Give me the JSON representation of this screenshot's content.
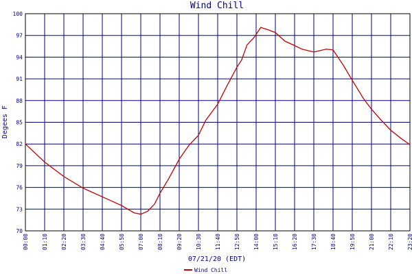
{
  "chart_data": {
    "type": "line",
    "title": "Wind Chill",
    "y_label": "Degees F",
    "x_label": "07/21/20 (EDT)",
    "x": [
      "00:00",
      "01:10",
      "02:20",
      "03:30",
      "04:40",
      "05:50",
      "06:35",
      "07:00",
      "07:25",
      "07:50",
      "08:10",
      "08:40",
      "09:20",
      "09:55",
      "10:30",
      "10:57",
      "11:40",
      "12:12",
      "12:50",
      "13:07",
      "13:27",
      "13:52",
      "14:17",
      "14:42",
      "15:10",
      "15:45",
      "16:20",
      "16:47",
      "17:30",
      "18:15",
      "18:40",
      "19:17",
      "19:50",
      "20:32",
      "21:00",
      "21:35",
      "22:10",
      "22:50",
      "23:20"
    ],
    "series": [
      {
        "name": "Wind Chill",
        "color": "#c00000",
        "values": [
          82.0,
          79.5,
          77.5,
          75.9,
          74.7,
          73.5,
          72.5,
          72.3,
          72.7,
          73.7,
          75.2,
          77.1,
          79.9,
          81.8,
          83.2,
          85.3,
          87.5,
          89.9,
          92.6,
          93.6,
          95.7,
          96.7,
          98.1,
          97.8,
          97.4,
          96.2,
          95.6,
          95.1,
          94.7,
          95.1,
          95.0,
          92.9,
          90.8,
          88.2,
          86.8,
          85.3,
          83.9,
          82.7,
          81.9
        ]
      }
    ],
    "xlim": [
      "00:00",
      "23:20"
    ],
    "xticks": [
      "00:00",
      "01:10",
      "02:20",
      "03:30",
      "04:40",
      "05:50",
      "07:00",
      "08:10",
      "09:20",
      "10:30",
      "11:40",
      "12:50",
      "14:00",
      "15:10",
      "16:20",
      "17:30",
      "18:40",
      "19:50",
      "21:00",
      "22:10",
      "23:20"
    ],
    "ylim": [
      70,
      100
    ],
    "yticks": [
      70,
      73,
      76,
      79,
      82,
      85,
      88,
      91,
      94,
      97,
      100
    ],
    "grid": true
  }
}
